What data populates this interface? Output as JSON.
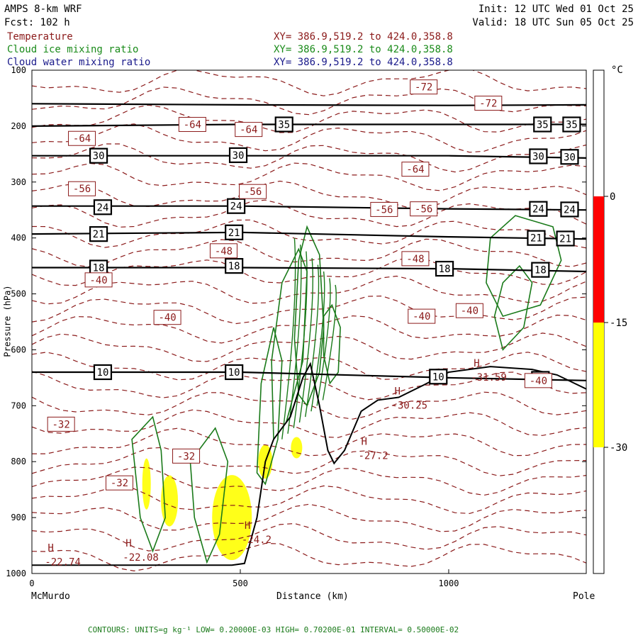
{
  "header": {
    "model": "AMPS 8-km WRF",
    "forecast": "Fcst:  102 h",
    "init": "Init: 12 UTC Wed 01 Oct 25",
    "valid": "Valid: 18 UTC Sun 05 Oct 25"
  },
  "fields": [
    {
      "name": "Temperature",
      "xy": "XY= 386.9,519.2 to 424.0,358.8",
      "color": "#8b1a1a"
    },
    {
      "name": "Cloud ice mixing ratio",
      "xy": "XY= 386.9,519.2 to 424.0,358.8",
      "color": "#1a8b1a"
    },
    {
      "name": "Cloud water mixing ratio",
      "xy": "XY= 386.9,519.2 to 424.0,358.8",
      "color": "#1a1a8b"
    }
  ],
  "colors": {
    "temperature": "#8b1a1a",
    "ice": "#1a7a1a",
    "potential_temp_lines": "#000000",
    "shade_yellow": "#ffff00",
    "shade_red": "#ff0000"
  },
  "footer": "CONTOURS:  UNITS=g kg⁻¹  LOW= 0.20000E-03  HIGH= 0.70200E-01  INTERVAL=  0.50000E-02",
  "chart_data": {
    "type": "cross-section",
    "xlabel": "Distance (km)",
    "x_left_label": "McMurdo",
    "x_right_label": "Pole",
    "ylabel": "Pressure (hPa)",
    "xlim": [
      0,
      1330
    ],
    "ylim": [
      1000,
      100
    ],
    "x_ticks": [
      0,
      500,
      1000
    ],
    "y_ticks": [
      100,
      200,
      300,
      400,
      500,
      600,
      700,
      800,
      900,
      1000
    ],
    "colorbar": {
      "unit": "°C",
      "ticks": [
        "0",
        "-15",
        "-30"
      ],
      "bands": [
        {
          "from": "0",
          "to": "-15",
          "color": "#ff0000"
        },
        {
          "from": "-15",
          "to": "-30",
          "color": "#ffff00"
        }
      ]
    },
    "isentropes": [
      {
        "label": "10",
        "y": [
          640,
          640,
          650,
          655
        ]
      },
      {
        "label": "18",
        "y": [
          453,
          453,
          455,
          460
        ]
      },
      {
        "label": "21",
        "y": [
          393,
          390,
          398,
          402
        ]
      },
      {
        "label": "24",
        "y": [
          343,
          343,
          348,
          350
        ]
      },
      {
        "label": "30",
        "y": [
          253,
          253,
          253,
          257
        ]
      },
      {
        "label": "35",
        "y": [
          200,
          197,
          197,
          197
        ]
      },
      {
        "label": "",
        "y": [
          160,
          162,
          163,
          162
        ]
      }
    ],
    "isentrope_x": [
      0,
      500,
      1000,
      1330
    ],
    "isentrope_label_positions": [
      {
        "label": "10",
        "x": 170,
        "p": 640
      },
      {
        "label": "10",
        "x": 485,
        "p": 640
      },
      {
        "label": "10",
        "x": 975,
        "p": 648
      },
      {
        "label": "10",
        "x": 1220,
        "p": 652
      },
      {
        "label": "18",
        "x": 160,
        "p": 453
      },
      {
        "label": "18",
        "x": 485,
        "p": 450
      },
      {
        "label": "18",
        "x": 990,
        "p": 455
      },
      {
        "label": "18",
        "x": 1220,
        "p": 457
      },
      {
        "label": "21",
        "x": 160,
        "p": 393
      },
      {
        "label": "21",
        "x": 485,
        "p": 390
      },
      {
        "label": "21",
        "x": 1210,
        "p": 400
      },
      {
        "label": "21",
        "x": 1280,
        "p": 401
      },
      {
        "label": "24",
        "x": 170,
        "p": 345
      },
      {
        "label": "24",
        "x": 490,
        "p": 343
      },
      {
        "label": "24",
        "x": 1215,
        "p": 348
      },
      {
        "label": "24",
        "x": 1290,
        "p": 349
      },
      {
        "label": "30",
        "x": 160,
        "p": 253
      },
      {
        "label": "30",
        "x": 495,
        "p": 252
      },
      {
        "label": "30",
        "x": 1215,
        "p": 254
      },
      {
        "label": "30",
        "x": 1290,
        "p": 255
      },
      {
        "label": "35",
        "x": 605,
        "p": 197
      },
      {
        "label": "35",
        "x": 1225,
        "p": 197
      },
      {
        "label": "35",
        "x": 1295,
        "p": 197
      }
    ],
    "temperature_labels": [
      {
        "label": "-72",
        "x": 940,
        "p": 130
      },
      {
        "label": "-72",
        "x": 1095,
        "p": 159
      },
      {
        "label": "-64",
        "x": 120,
        "p": 222
      },
      {
        "label": "-64",
        "x": 385,
        "p": 197
      },
      {
        "label": "-64",
        "x": 520,
        "p": 206
      },
      {
        "label": "-64",
        "x": 920,
        "p": 277
      },
      {
        "label": "-56",
        "x": 120,
        "p": 312
      },
      {
        "label": "-56",
        "x": 530,
        "p": 317
      },
      {
        "label": "-56",
        "x": 845,
        "p": 349
      },
      {
        "label": "-56",
        "x": 940,
        "p": 348
      },
      {
        "label": "-48",
        "x": 460,
        "p": 423
      },
      {
        "label": "-48",
        "x": 920,
        "p": 437
      },
      {
        "label": "-40",
        "x": 160,
        "p": 475
      },
      {
        "label": "-40",
        "x": 325,
        "p": 542
      },
      {
        "label": "-40",
        "x": 935,
        "p": 540
      },
      {
        "label": "-40",
        "x": 1050,
        "p": 530
      },
      {
        "label": "-40",
        "x": 1215,
        "p": 655
      },
      {
        "label": "-32",
        "x": 70,
        "p": 733
      },
      {
        "label": "-32",
        "x": 370,
        "p": 790
      },
      {
        "label": "-32",
        "x": 210,
        "p": 838
      }
    ],
    "extrema": [
      {
        "marker": "H",
        "value": "-22.74",
        "x": 38,
        "p": 960
      },
      {
        "marker": "H",
        "value": "-22.08",
        "x": 225,
        "p": 952
      },
      {
        "marker": "H",
        "value": "-24.2",
        "x": 510,
        "p": 920
      },
      {
        "marker": "H",
        "value": "-27.2",
        "x": 790,
        "p": 770
      },
      {
        "marker": "H",
        "value": "-30.25",
        "x": 870,
        "p": 680
      },
      {
        "marker": "H",
        "value": "-31.59",
        "x": 1060,
        "p": 630
      }
    ],
    "terrain_p": [
      {
        "x": 0,
        "p": 985
      },
      {
        "x": 200,
        "p": 985
      },
      {
        "x": 480,
        "p": 985
      },
      {
        "x": 510,
        "p": 982
      },
      {
        "x": 540,
        "p": 900
      },
      {
        "x": 560,
        "p": 800
      },
      {
        "x": 580,
        "p": 760
      },
      {
        "x": 620,
        "p": 720
      },
      {
        "x": 650,
        "p": 650
      },
      {
        "x": 668,
        "p": 625
      },
      {
        "x": 690,
        "p": 700
      },
      {
        "x": 710,
        "p": 780
      },
      {
        "x": 725,
        "p": 803
      },
      {
        "x": 750,
        "p": 780
      },
      {
        "x": 790,
        "p": 710
      },
      {
        "x": 830,
        "p": 690
      },
      {
        "x": 880,
        "p": 685
      },
      {
        "x": 940,
        "p": 663
      },
      {
        "x": 1000,
        "p": 640
      },
      {
        "x": 1100,
        "p": 630
      },
      {
        "x": 1200,
        "p": 635
      },
      {
        "x": 1260,
        "p": 645
      },
      {
        "x": 1330,
        "p": 670
      }
    ]
  }
}
